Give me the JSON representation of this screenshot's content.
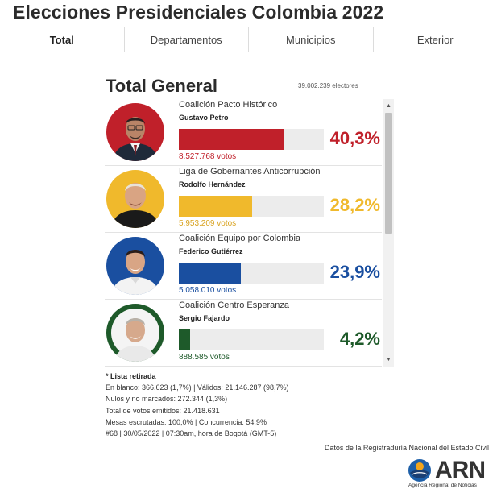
{
  "page": {
    "title": "Elecciones Presidenciales Colombia 2022"
  },
  "tabs": [
    {
      "label": "Total",
      "active": true
    },
    {
      "label": "Departamentos",
      "active": false
    },
    {
      "label": "Municipios",
      "active": false
    },
    {
      "label": "Exterior",
      "active": false
    }
  ],
  "summary": {
    "title": "Total General",
    "electors": "39.002.239 electores"
  },
  "candidates": [
    {
      "party": "Coalición Pacto Histórico",
      "name": "Gustavo Petro",
      "votes": "8.527.768 votos",
      "percent": "40,3%",
      "share": 0.403,
      "color": "#c0202a",
      "photo_bg": "#c0202a"
    },
    {
      "party": "Liga de Gobernantes Anticorrupción",
      "name": "Rodolfo Hernández",
      "votes": "5.953.209 votos",
      "percent": "28,2%",
      "share": 0.282,
      "color": "#f0b92c",
      "photo_bg": "#f0b92c"
    },
    {
      "party": "Coalición Equipo por Colombia",
      "name": "Federico Gutiérrez",
      "votes": "5.058.010 votos",
      "percent": "23,9%",
      "share": 0.239,
      "color": "#1a4fa0",
      "photo_bg": "#1a4fa0"
    },
    {
      "party": "Coalición Centro Esperanza",
      "name": "Sergio Fajardo",
      "votes": "888.585 votos",
      "percent": "4,2%",
      "share": 0.042,
      "color": "#1e5a2a",
      "photo_bg": "#1e5a2a"
    }
  ],
  "notes": {
    "title": "* Lista retirada",
    "lines": [
      "En blanco: 366.623 (1,7%) | Válidos: 21.146.287 (98,7%)",
      "Nulos y no marcados: 272.344 (1,3%)",
      "Total de votos emitidos: 21.418.631",
      "Mesas escrutadas: 100,0% | Concurrencia: 54,9%",
      "#68 | 30/05/2022 | 07:30am, hora de Bogotá (GMT-5)"
    ]
  },
  "footer": {
    "source": "Datos de la Registraduría Nacional del Estado Civil",
    "logo_text": "ARN",
    "logo_subtitle": "Agencia Regional de Noticias"
  },
  "icons": {
    "scroll_up": "scroll-up-arrow-icon",
    "scroll_down": "scroll-down-arrow-icon",
    "logo": "arn-logo-icon"
  }
}
